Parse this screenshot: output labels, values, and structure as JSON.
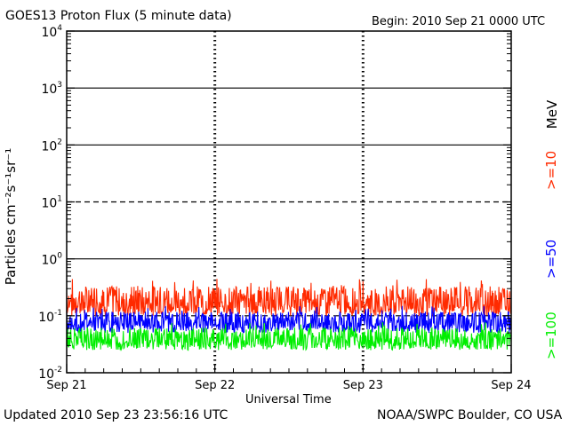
{
  "header": {
    "title": "GOES13 Proton Flux (5 minute data)",
    "begin": "Begin: 2010 Sep 21 0000 UTC"
  },
  "footer": {
    "updated": "Updated 2010 Sep 23 23:56:16 UTC",
    "credit": "NOAA/SWPC Boulder, CO USA"
  },
  "chart_data": {
    "type": "line",
    "title": "GOES13 Proton Flux (5 minute data)",
    "xlabel": "Universal Time",
    "ylabel": "Particles cm⁻²s⁻¹sr⁻¹",
    "y_scale": "log",
    "ylim": [
      0.01,
      10000
    ],
    "y_ticks": [
      {
        "base": "10",
        "exp": "4"
      },
      {
        "base": "10",
        "exp": "3"
      },
      {
        "base": "10",
        "exp": "2"
      },
      {
        "base": "10",
        "exp": "1"
      },
      {
        "base": "10",
        "exp": "0"
      },
      {
        "base": "10",
        "exp": "-1"
      },
      {
        "base": "10",
        "exp": "-2"
      }
    ],
    "x_ticks": [
      "Sep 21",
      "Sep 22",
      "Sep 23",
      "Sep 24"
    ],
    "xlim": [
      "2010-09-21",
      "2010-09-24"
    ],
    "unit_label": "MeV",
    "series": [
      {
        "name": ">=10",
        "color": "#ff2a00",
        "baseline": 0.15,
        "min": 0.1,
        "max": 0.45
      },
      {
        "name": ">=50",
        "color": "#0000ff",
        "baseline": 0.07,
        "min": 0.05,
        "max": 0.15
      },
      {
        "name": ">=100",
        "color": "#00ee00",
        "baseline": 0.035,
        "min": 0.025,
        "max": 0.08
      }
    ],
    "threshold_lines": [
      {
        "value": 10,
        "style": "dashed"
      },
      {
        "value": 0.1,
        "style": "dashed"
      }
    ],
    "grid": true
  }
}
